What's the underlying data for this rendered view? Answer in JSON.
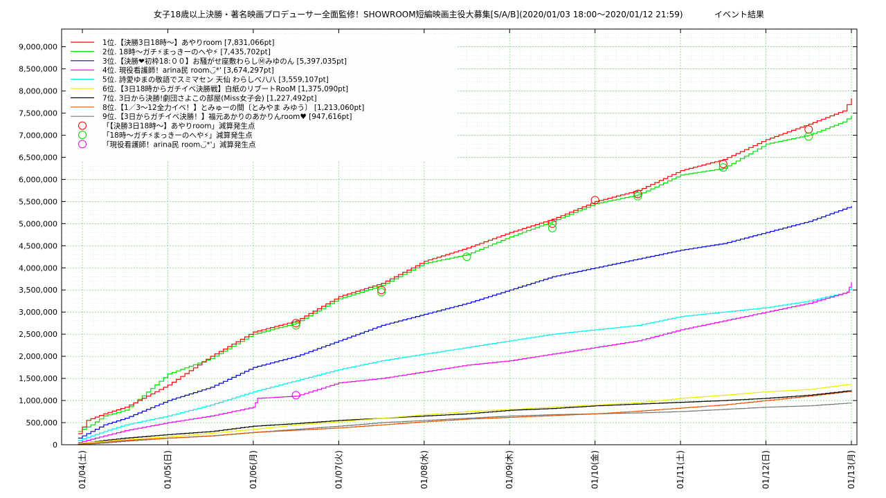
{
  "title": "女子18歳以上決勝・著名映画プロデューサー全面監修！SHOWROOM短編映画主役大募集[S/A/B](2020/01/03 18:00～2020/01/12 21:59)",
  "title_right": "イベント結果",
  "chart_data": {
    "type": "line",
    "title": "女子18歳以上決勝・著名映画プロデューサー全面監修！SHOWROOM短編映画主役大募集[S/A/B](2020/01/03 18:00～2020/01/12 21:59)",
    "x_unit": "days",
    "x_range_days": [
      -0.05,
      9.0
    ],
    "ylim": [
      0,
      9400000
    ],
    "yticks": [
      0,
      500000,
      1000000,
      1500000,
      2000000,
      2500000,
      3000000,
      3500000,
      4000000,
      4500000,
      5000000,
      5500000,
      6000000,
      6500000,
      7000000,
      7500000,
      8000000,
      8500000,
      9000000
    ],
    "ytick_labels": [
      "0",
      "500,000",
      "1,000,000",
      "1,500,000",
      "2,000,000",
      "2,500,000",
      "3,000,000",
      "3,500,000",
      "4,000,000",
      "4,500,000",
      "5,000,000",
      "5,500,000",
      "6,000,000",
      "6,500,000",
      "7,000,000",
      "7,500,000",
      "8,000,000",
      "8,500,000",
      "9,000,000"
    ],
    "xtick_labels": [
      "01/04(土)",
      "01/05(日)",
      "01/06(月)",
      "01/07(火)",
      "01/08(水)",
      "01/09(木)",
      "01/10(金)",
      "01/11(土)",
      "01/12(日)",
      "01/13(月)"
    ],
    "grid": true,
    "legend_position": "top-left",
    "series": [
      {
        "name": "1位.【決勝3日18時～】あやりroom [7,831,066pt]",
        "color": "#ff0000",
        "points": [
          [
            -0.05,
            250000
          ],
          [
            0.05,
            550000
          ],
          [
            0.25,
            700000
          ],
          [
            0.5,
            850000
          ],
          [
            1.0,
            1350000
          ],
          [
            1.5,
            2000000
          ],
          [
            2.0,
            2550000
          ],
          [
            2.5,
            2800000
          ],
          [
            3.0,
            3350000
          ],
          [
            3.5,
            3650000
          ],
          [
            4.0,
            4150000
          ],
          [
            4.5,
            4450000
          ],
          [
            5.0,
            4800000
          ],
          [
            5.5,
            5100000
          ],
          [
            6.0,
            5500000
          ],
          [
            6.5,
            5750000
          ],
          [
            7.0,
            6200000
          ],
          [
            7.5,
            6450000
          ],
          [
            8.0,
            6900000
          ],
          [
            8.5,
            7250000
          ],
          [
            8.9,
            7550000
          ],
          [
            9.0,
            7831066
          ]
        ]
      },
      {
        "name": "2位. 18時～ガチ⚡まっきーのへや⚡ [7,435,702pt]",
        "color": "#00dd00",
        "points": [
          [
            -0.05,
            300000
          ],
          [
            0.1,
            450000
          ],
          [
            0.25,
            650000
          ],
          [
            0.5,
            780000
          ],
          [
            1.0,
            1600000
          ],
          [
            1.5,
            1950000
          ],
          [
            2.0,
            2500000
          ],
          [
            2.5,
            2750000
          ],
          [
            3.0,
            3300000
          ],
          [
            3.5,
            3600000
          ],
          [
            4.0,
            4100000
          ],
          [
            4.5,
            4300000
          ],
          [
            5.0,
            4700000
          ],
          [
            5.5,
            5050000
          ],
          [
            6.0,
            5450000
          ],
          [
            6.5,
            5650000
          ],
          [
            7.0,
            6100000
          ],
          [
            7.5,
            6250000
          ],
          [
            8.0,
            6800000
          ],
          [
            8.5,
            7000000
          ],
          [
            8.9,
            7300000
          ],
          [
            9.0,
            7435702
          ]
        ]
      },
      {
        "name": "3位.【決勝❤初枠18:００】お騒がせ座敷わらしⓂみゆのん [5,397,035pt]",
        "color": "#0000dd",
        "points": [
          [
            -0.05,
            150000
          ],
          [
            0.1,
            300000
          ],
          [
            0.25,
            450000
          ],
          [
            0.5,
            600000
          ],
          [
            1.0,
            1000000
          ],
          [
            1.5,
            1300000
          ],
          [
            2.0,
            1750000
          ],
          [
            2.5,
            2000000
          ],
          [
            3.0,
            2350000
          ],
          [
            3.5,
            2700000
          ],
          [
            4.0,
            2950000
          ],
          [
            4.5,
            3200000
          ],
          [
            5.0,
            3500000
          ],
          [
            5.5,
            3800000
          ],
          [
            6.0,
            4000000
          ],
          [
            6.5,
            4200000
          ],
          [
            7.0,
            4400000
          ],
          [
            7.5,
            4550000
          ],
          [
            8.0,
            4800000
          ],
          [
            8.5,
            5050000
          ],
          [
            9.0,
            5397035
          ]
        ]
      },
      {
        "name": "4位. 現役看護師！arina民 room◡̈*' [3,674,297pt]",
        "color": "#ee00ee",
        "points": [
          [
            -0.05,
            50000
          ],
          [
            0.25,
            200000
          ],
          [
            0.5,
            320000
          ],
          [
            1.0,
            500000
          ],
          [
            1.5,
            650000
          ],
          [
            2.0,
            850000
          ],
          [
            2.05,
            1050000
          ],
          [
            2.5,
            1100000
          ],
          [
            3.0,
            1400000
          ],
          [
            3.5,
            1500000
          ],
          [
            4.0,
            1650000
          ],
          [
            4.5,
            1800000
          ],
          [
            5.0,
            1900000
          ],
          [
            5.5,
            2050000
          ],
          [
            6.0,
            2200000
          ],
          [
            6.5,
            2350000
          ],
          [
            7.0,
            2600000
          ],
          [
            7.5,
            2800000
          ],
          [
            8.0,
            3000000
          ],
          [
            8.5,
            3200000
          ],
          [
            8.95,
            3450000
          ],
          [
            9.0,
            3674297
          ]
        ]
      },
      {
        "name": "5位. 詩愛ゆまの敬語でスミマセン 天仙 わらしべ八八 [3,559,107pt]",
        "color": "#00eeee",
        "points": [
          [
            -0.05,
            100000
          ],
          [
            0.1,
            200000
          ],
          [
            0.25,
            300000
          ],
          [
            0.5,
            450000
          ],
          [
            1.0,
            650000
          ],
          [
            1.5,
            900000
          ],
          [
            2.0,
            1200000
          ],
          [
            2.5,
            1450000
          ],
          [
            3.0,
            1700000
          ],
          [
            3.5,
            1900000
          ],
          [
            4.0,
            2050000
          ],
          [
            4.5,
            2200000
          ],
          [
            5.0,
            2350000
          ],
          [
            5.5,
            2500000
          ],
          [
            6.0,
            2600000
          ],
          [
            6.5,
            2700000
          ],
          [
            7.0,
            2900000
          ],
          [
            7.5,
            3000000
          ],
          [
            8.0,
            3100000
          ],
          [
            8.5,
            3250000
          ],
          [
            8.95,
            3450000
          ],
          [
            9.0,
            3559107
          ]
        ]
      },
      {
        "name": "6位.【3日18時からガチイベ決勝戦】白紙のリブートRooM [1,375,090pt]",
        "color": "#eeee00",
        "points": [
          [
            -0.05,
            30000
          ],
          [
            0.25,
            80000
          ],
          [
            0.5,
            120000
          ],
          [
            1.0,
            180000
          ],
          [
            1.5,
            260000
          ],
          [
            2.0,
            350000
          ],
          [
            2.5,
            450000
          ],
          [
            3.0,
            520000
          ],
          [
            3.5,
            600000
          ],
          [
            4.0,
            680000
          ],
          [
            4.5,
            750000
          ],
          [
            5.0,
            800000
          ],
          [
            5.5,
            850000
          ],
          [
            6.0,
            900000
          ],
          [
            6.5,
            950000
          ],
          [
            7.0,
            1050000
          ],
          [
            7.5,
            1120000
          ],
          [
            8.0,
            1200000
          ],
          [
            8.5,
            1250000
          ],
          [
            9.0,
            1375090
          ]
        ]
      },
      {
        "name": "7位. 3日から決勝!劇団さよこの部屋(Miss女子会) [1,227,492pt]",
        "color": "#000000",
        "points": [
          [
            -0.05,
            20000
          ],
          [
            0.25,
            100000
          ],
          [
            0.5,
            150000
          ],
          [
            1.0,
            230000
          ],
          [
            1.5,
            300000
          ],
          [
            2.0,
            420000
          ],
          [
            2.5,
            480000
          ],
          [
            3.0,
            550000
          ],
          [
            3.5,
            600000
          ],
          [
            4.0,
            650000
          ],
          [
            4.5,
            700000
          ],
          [
            5.0,
            780000
          ],
          [
            5.5,
            820000
          ],
          [
            6.0,
            880000
          ],
          [
            6.5,
            920000
          ],
          [
            7.0,
            960000
          ],
          [
            7.5,
            1000000
          ],
          [
            8.0,
            1050000
          ],
          [
            8.5,
            1120000
          ],
          [
            9.0,
            1227492
          ]
        ]
      },
      {
        "name": "8位.【1／3～12全力イベ！】とみゅーの間〔とみやま みゆう〕 [1,213,060pt]",
        "color": "#dd5500",
        "points": [
          [
            -0.05,
            10000
          ],
          [
            0.25,
            60000
          ],
          [
            0.5,
            100000
          ],
          [
            1.0,
            150000
          ],
          [
            1.5,
            200000
          ],
          [
            2.0,
            280000
          ],
          [
            2.5,
            330000
          ],
          [
            3.0,
            380000
          ],
          [
            3.5,
            450000
          ],
          [
            4.0,
            520000
          ],
          [
            4.5,
            580000
          ],
          [
            5.0,
            620000
          ],
          [
            5.5,
            660000
          ],
          [
            6.0,
            700000
          ],
          [
            6.5,
            760000
          ],
          [
            7.0,
            830000
          ],
          [
            7.5,
            900000
          ],
          [
            8.0,
            1000000
          ],
          [
            8.5,
            1100000
          ],
          [
            9.0,
            1213060
          ]
        ]
      },
      {
        "name": "9位.【3日からガチイベ決勝！】福元あかりのあかりんroom♥ [947,616pt]",
        "color": "#777777",
        "points": [
          [
            -0.05,
            5000
          ],
          [
            0.25,
            40000
          ],
          [
            0.5,
            80000
          ],
          [
            1.0,
            150000
          ],
          [
            1.5,
            200000
          ],
          [
            2.0,
            280000
          ],
          [
            2.5,
            350000
          ],
          [
            3.0,
            420000
          ],
          [
            3.5,
            500000
          ],
          [
            4.0,
            550000
          ],
          [
            4.5,
            600000
          ],
          [
            5.0,
            650000
          ],
          [
            5.5,
            680000
          ],
          [
            6.0,
            700000
          ],
          [
            6.5,
            720000
          ],
          [
            7.0,
            750000
          ],
          [
            7.5,
            800000
          ],
          [
            8.0,
            850000
          ],
          [
            8.5,
            880000
          ],
          [
            9.0,
            947616
          ]
        ]
      }
    ],
    "markers": [
      {
        "name": "「【決勝3日18時～】あやりroom」減算発生点",
        "color": "#ff0000",
        "points": [
          [
            2.5,
            2750000
          ],
          [
            3.5,
            3500000
          ],
          [
            5.5,
            5000000
          ],
          [
            6.0,
            5530000
          ],
          [
            6.5,
            5670000
          ],
          [
            7.5,
            6350000
          ],
          [
            8.5,
            7130000
          ]
        ]
      },
      {
        "name": "「18時～ガチ⚡まっきーのへや⚡」減算発生点",
        "color": "#00dd00",
        "points": [
          [
            2.5,
            2700000
          ],
          [
            3.5,
            3450000
          ],
          [
            4.5,
            4250000
          ],
          [
            5.5,
            4900000
          ],
          [
            6.5,
            5620000
          ],
          [
            7.5,
            6270000
          ],
          [
            8.5,
            6970000
          ]
        ]
      },
      {
        "name": "「現役看護師！arina民 room◡̈*'」減算発生点",
        "color": "#ee00ee",
        "points": [
          [
            2.5,
            1120000
          ]
        ]
      }
    ]
  }
}
